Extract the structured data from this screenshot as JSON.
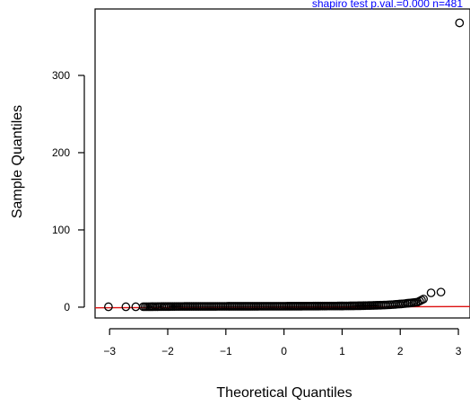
{
  "chart_data": {
    "type": "scatter",
    "subtype": "normal-qq-plot",
    "annotation": "shapiro test   p.val.=0.000   n=481",
    "xlabel": "Theoretical Quantiles",
    "ylabel": "Sample Quantiles",
    "xlim": [
      -3.25,
      3.2
    ],
    "ylim": [
      -14,
      386
    ],
    "x_ticks": [
      -3,
      -2,
      -1,
      0,
      1,
      2,
      3
    ],
    "x_tick_labels": [
      "−3",
      "−2",
      "−1",
      "0",
      "1",
      "2",
      "3"
    ],
    "y_ticks": [
      0,
      100,
      200,
      300
    ],
    "y_tick_labels": [
      "0",
      "100",
      "200",
      "300"
    ],
    "n": 481,
    "reference_line": {
      "color": "#dd1111",
      "intercept": 0.0,
      "slope": 0.25
    },
    "points_approx": {
      "x": [
        -3.02,
        -2.72,
        -2.55,
        -2.42,
        -2.33,
        -2.25,
        -2.18,
        -2.1,
        -2.0,
        -1.8,
        -1.5,
        -1.2,
        -0.9,
        -0.6,
        -0.3,
        0.0,
        0.3,
        0.6,
        0.9,
        1.2,
        1.4,
        1.6,
        1.75,
        1.85,
        1.95,
        2.05,
        2.12,
        2.2,
        2.3,
        2.4,
        2.53,
        2.7,
        3.02
      ],
      "y": [
        0.5,
        0.5,
        0.5,
        0.6,
        0.6,
        0.7,
        0.7,
        0.8,
        0.8,
        0.9,
        1.0,
        1.0,
        1.1,
        1.1,
        1.2,
        1.2,
        1.3,
        1.4,
        1.5,
        1.7,
        2.0,
        2.4,
        2.8,
        3.2,
        3.8,
        4.4,
        5.0,
        5.6,
        6.5,
        10.5,
        18.5,
        19.5,
        368
      ]
    },
    "colors": {
      "points": "#000000",
      "reference_line": "#dd1111",
      "annotation": "#0000ff"
    },
    "grid": false,
    "legend": "none"
  }
}
